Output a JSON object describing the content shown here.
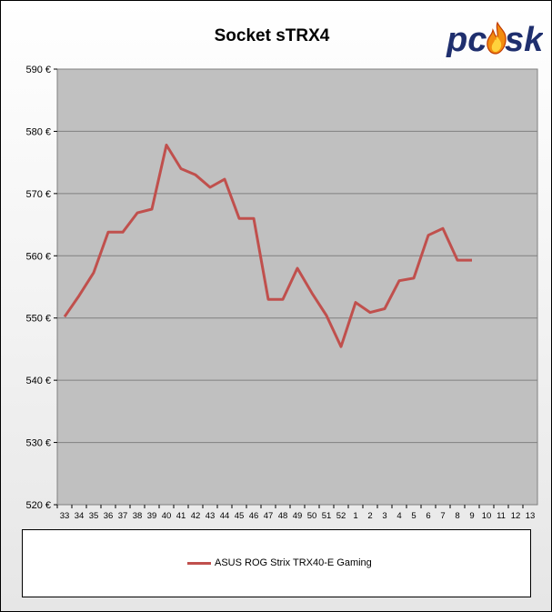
{
  "chart_data": {
    "type": "line",
    "title": "Socket sTRX4",
    "categories": [
      "33",
      "34",
      "35",
      "36",
      "37",
      "38",
      "39",
      "40",
      "41",
      "42",
      "43",
      "44",
      "45",
      "46",
      "47",
      "48",
      "49",
      "50",
      "51",
      "52",
      "1",
      "2",
      "3",
      "4",
      "5",
      "6",
      "7",
      "8",
      "9",
      "10",
      "11",
      "12",
      "13"
    ],
    "series": [
      {
        "name": "ASUS ROG Strix TRX40-E Gaming",
        "color": "#c0504d",
        "values": [
          550.2,
          553.6,
          557.3,
          563.8,
          563.8,
          566.9,
          567.5,
          577.8,
          574.0,
          573.0,
          571.0,
          572.3,
          566.0,
          566.0,
          553.0,
          553.0,
          558.0,
          554.0,
          550.4,
          545.4,
          552.5,
          550.9,
          551.5,
          556.0,
          556.4,
          563.3,
          564.4,
          559.3,
          559.3,
          null,
          null,
          null,
          null
        ]
      }
    ],
    "ylim": [
      520,
      590
    ],
    "y_ticks": [
      590,
      580,
      570,
      560,
      550,
      540,
      530,
      520
    ],
    "y_tick_labels": [
      "590 €",
      "580 €",
      "570 €",
      "560 €",
      "550 €",
      "540 €",
      "530 €",
      "520 €"
    ],
    "grid": "horizontal",
    "legend_position": "bottom",
    "plot_background": "#c0c0c0"
  },
  "logo": {
    "text_left": "pc",
    "text_right": "sk",
    "color": "#1f2f6e"
  }
}
